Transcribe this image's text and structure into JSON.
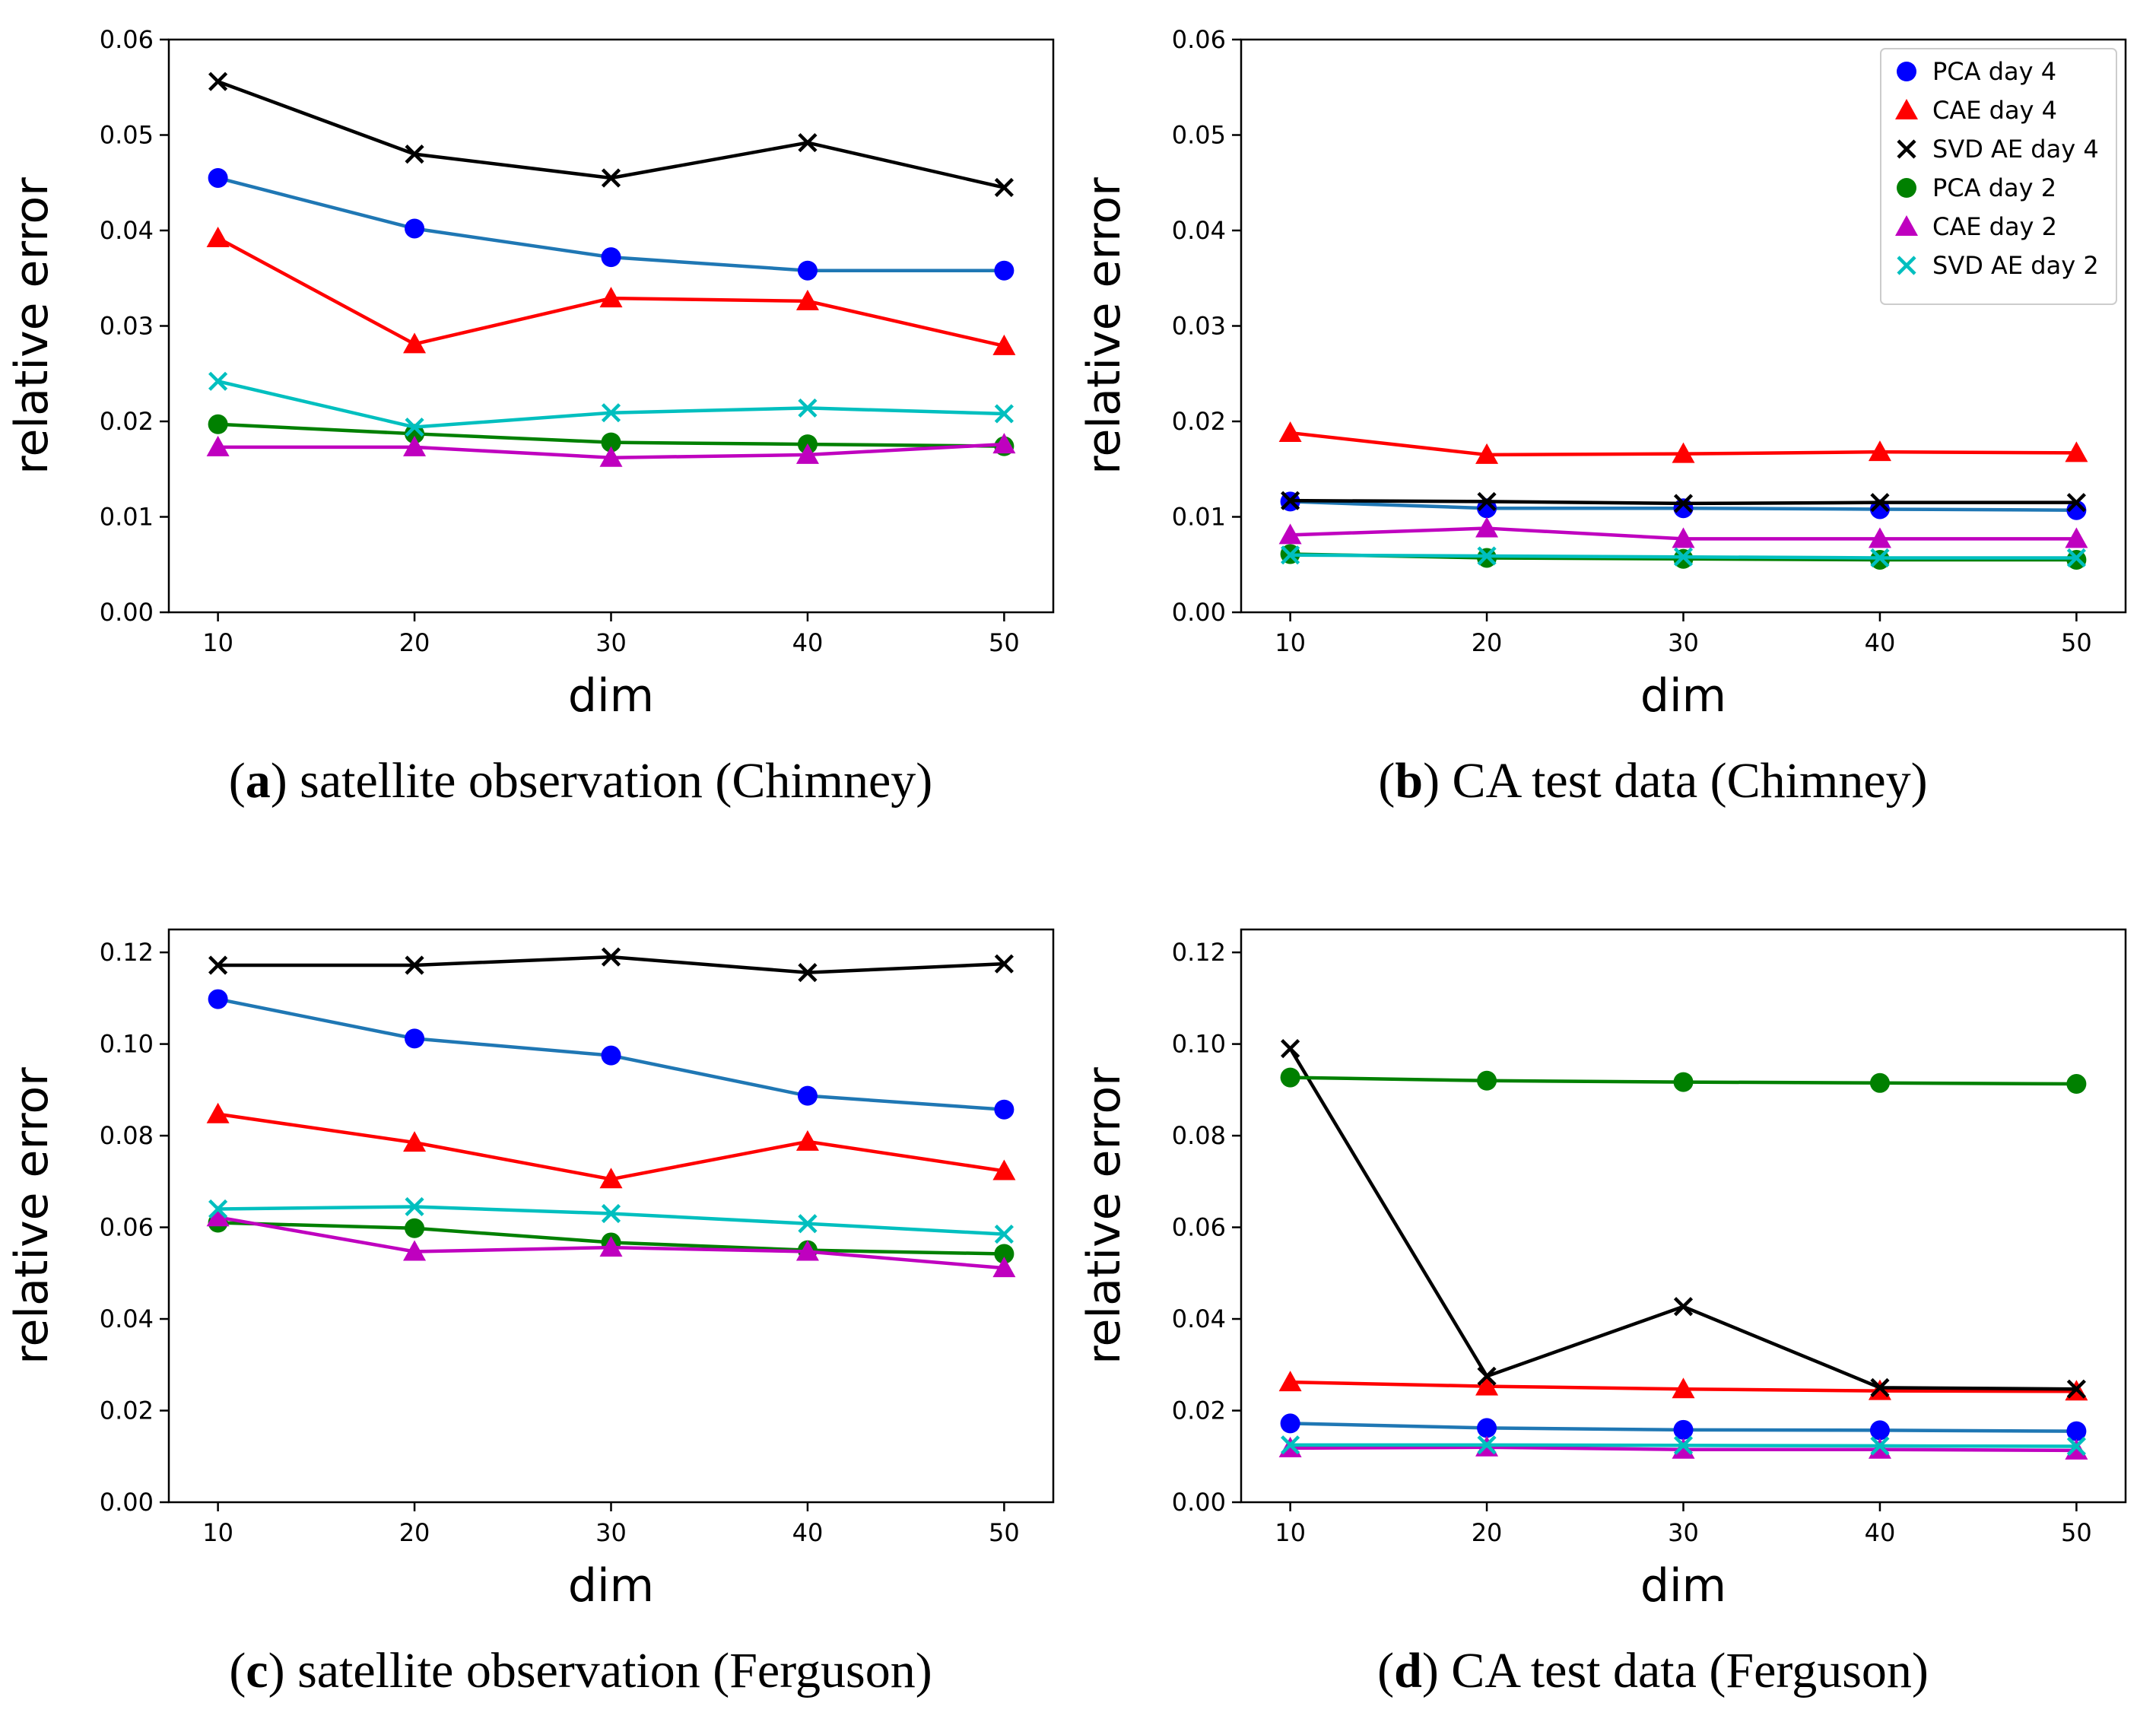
{
  "chart_data": [
    {
      "type": "line",
      "panel": "a",
      "caption_letter": "a",
      "caption_text": "satellite observation (Chimney)",
      "xlabel": "dim",
      "ylabel": "relative error",
      "x": [
        10,
        20,
        30,
        40,
        50
      ],
      "xticks": [
        "10",
        "20",
        "30",
        "40",
        "50"
      ],
      "ylim": [
        0,
        0.06
      ],
      "yticks": [
        "0.00",
        "0.01",
        "0.02",
        "0.03",
        "0.04",
        "0.05",
        "0.06"
      ],
      "legend": false,
      "series": [
        {
          "name": "PCA day 4",
          "color": "#0000ff",
          "line_color": "#1f77b4",
          "marker": "circle",
          "values": [
            0.0455,
            0.0402,
            0.0372,
            0.0358,
            0.0358
          ]
        },
        {
          "name": "CAE day 4",
          "color": "#ff0000",
          "line_color": "#ff0000",
          "marker": "triangle",
          "values": [
            0.0392,
            0.0281,
            0.0329,
            0.0326,
            0.0279
          ]
        },
        {
          "name": "SVD AE day 4",
          "color": "#000000",
          "line_color": "#000000",
          "marker": "x",
          "values": [
            0.0556,
            0.048,
            0.0455,
            0.0492,
            0.0445
          ]
        },
        {
          "name": "PCA day 2",
          "color": "#008000",
          "line_color": "#008000",
          "marker": "circle",
          "values": [
            0.0197,
            0.0187,
            0.0178,
            0.0176,
            0.0174
          ]
        },
        {
          "name": "CAE day 2",
          "color": "#bf00bf",
          "line_color": "#bf00bf",
          "marker": "triangle",
          "values": [
            0.0173,
            0.0173,
            0.0162,
            0.0165,
            0.0176
          ]
        },
        {
          "name": "SVD AE day 2",
          "color": "#00bfbf",
          "line_color": "#00bfbf",
          "marker": "x",
          "values": [
            0.0242,
            0.0194,
            0.0209,
            0.0214,
            0.0208
          ]
        }
      ]
    },
    {
      "type": "line",
      "panel": "b",
      "caption_letter": "b",
      "caption_text": "CA test data (Chimney)",
      "xlabel": "dim",
      "ylabel": "relative error",
      "x": [
        10,
        20,
        30,
        40,
        50
      ],
      "xticks": [
        "10",
        "20",
        "30",
        "40",
        "50"
      ],
      "ylim": [
        0,
        0.06
      ],
      "yticks": [
        "0.00",
        "0.01",
        "0.02",
        "0.03",
        "0.04",
        "0.05",
        "0.06"
      ],
      "legend": true,
      "legend_position": "top-right",
      "series": [
        {
          "name": "PCA day 4",
          "color": "#0000ff",
          "line_color": "#1f77b4",
          "marker": "circle",
          "values": [
            0.0116,
            0.0109,
            0.0109,
            0.0108,
            0.0107
          ]
        },
        {
          "name": "CAE day 4",
          "color": "#ff0000",
          "line_color": "#ff0000",
          "marker": "triangle",
          "values": [
            0.0188,
            0.0165,
            0.0166,
            0.0168,
            0.0167
          ]
        },
        {
          "name": "SVD AE day 4",
          "color": "#000000",
          "line_color": "#000000",
          "marker": "x",
          "values": [
            0.0117,
            0.0116,
            0.0114,
            0.0115,
            0.0115
          ]
        },
        {
          "name": "PCA day 2",
          "color": "#008000",
          "line_color": "#008000",
          "marker": "circle",
          "values": [
            0.0061,
            0.0057,
            0.0056,
            0.0055,
            0.0055
          ]
        },
        {
          "name": "CAE day 2",
          "color": "#bf00bf",
          "line_color": "#bf00bf",
          "marker": "triangle",
          "values": [
            0.0081,
            0.0088,
            0.0077,
            0.0077,
            0.0077
          ]
        },
        {
          "name": "SVD AE day 2",
          "color": "#00bfbf",
          "line_color": "#00bfbf",
          "marker": "x",
          "values": [
            0.006,
            0.0059,
            0.0058,
            0.0057,
            0.0057
          ]
        }
      ]
    },
    {
      "type": "line",
      "panel": "c",
      "caption_letter": "c",
      "caption_text": "satellite observation (Ferguson)",
      "xlabel": "dim",
      "ylabel": "relative error",
      "x": [
        10,
        20,
        30,
        40,
        50
      ],
      "xticks": [
        "10",
        "20",
        "30",
        "40",
        "50"
      ],
      "ylim": [
        0,
        0.125
      ],
      "yticks": [
        "0.00",
        "0.02",
        "0.04",
        "0.06",
        "0.08",
        "0.10",
        "0.12"
      ],
      "legend": false,
      "series": [
        {
          "name": "PCA day 4",
          "color": "#0000ff",
          "line_color": "#1f77b4",
          "marker": "circle",
          "values": [
            0.1098,
            0.1012,
            0.0975,
            0.0887,
            0.0857
          ]
        },
        {
          "name": "CAE day 4",
          "color": "#ff0000",
          "line_color": "#ff0000",
          "marker": "triangle",
          "values": [
            0.0847,
            0.0785,
            0.0705,
            0.0787,
            0.0723
          ]
        },
        {
          "name": "SVD AE day 4",
          "color": "#000000",
          "line_color": "#000000",
          "marker": "x",
          "values": [
            0.1172,
            0.1172,
            0.119,
            0.1156,
            0.1175
          ]
        },
        {
          "name": "PCA day 2",
          "color": "#008000",
          "line_color": "#008000",
          "marker": "circle",
          "values": [
            0.061,
            0.0598,
            0.0567,
            0.055,
            0.0542
          ]
        },
        {
          "name": "CAE day 2",
          "color": "#bf00bf",
          "line_color": "#bf00bf",
          "marker": "triangle",
          "values": [
            0.0622,
            0.0547,
            0.0556,
            0.0547,
            0.0511
          ]
        },
        {
          "name": "SVD AE day 2",
          "color": "#00bfbf",
          "line_color": "#00bfbf",
          "marker": "x",
          "values": [
            0.064,
            0.0645,
            0.063,
            0.0608,
            0.0585
          ]
        }
      ]
    },
    {
      "type": "line",
      "panel": "d",
      "caption_letter": "d",
      "caption_text": "CA test data (Ferguson)",
      "xlabel": "dim",
      "ylabel": "relative error",
      "x": [
        10,
        20,
        30,
        40,
        50
      ],
      "xticks": [
        "10",
        "20",
        "30",
        "40",
        "50"
      ],
      "ylim": [
        0,
        0.125
      ],
      "yticks": [
        "0.00",
        "0.02",
        "0.04",
        "0.06",
        "0.08",
        "0.10",
        "0.12"
      ],
      "legend": false,
      "series": [
        {
          "name": "PCA day 4",
          "color": "#0000ff",
          "line_color": "#1f77b4",
          "marker": "circle",
          "values": [
            0.0172,
            0.0162,
            0.0158,
            0.0157,
            0.0155
          ]
        },
        {
          "name": "CAE day 4",
          "color": "#ff0000",
          "line_color": "#ff0000",
          "marker": "triangle",
          "values": [
            0.0262,
            0.0253,
            0.0247,
            0.0243,
            0.0242
          ]
        },
        {
          "name": "SVD AE day 4",
          "color": "#000000",
          "line_color": "#000000",
          "marker": "x",
          "values": [
            0.099,
            0.0275,
            0.0427,
            0.025,
            0.0247
          ]
        },
        {
          "name": "PCA day 2",
          "color": "#008000",
          "line_color": "#008000",
          "marker": "circle",
          "values": [
            0.0927,
            0.092,
            0.0917,
            0.0915,
            0.0913
          ]
        },
        {
          "name": "CAE day 2",
          "color": "#bf00bf",
          "line_color": "#bf00bf",
          "marker": "triangle",
          "values": [
            0.0118,
            0.012,
            0.0115,
            0.0115,
            0.0113
          ]
        },
        {
          "name": "SVD AE day 2",
          "color": "#00bfbf",
          "line_color": "#00bfbf",
          "marker": "x",
          "values": [
            0.0125,
            0.0125,
            0.0124,
            0.0123,
            0.0122
          ]
        }
      ]
    }
  ]
}
